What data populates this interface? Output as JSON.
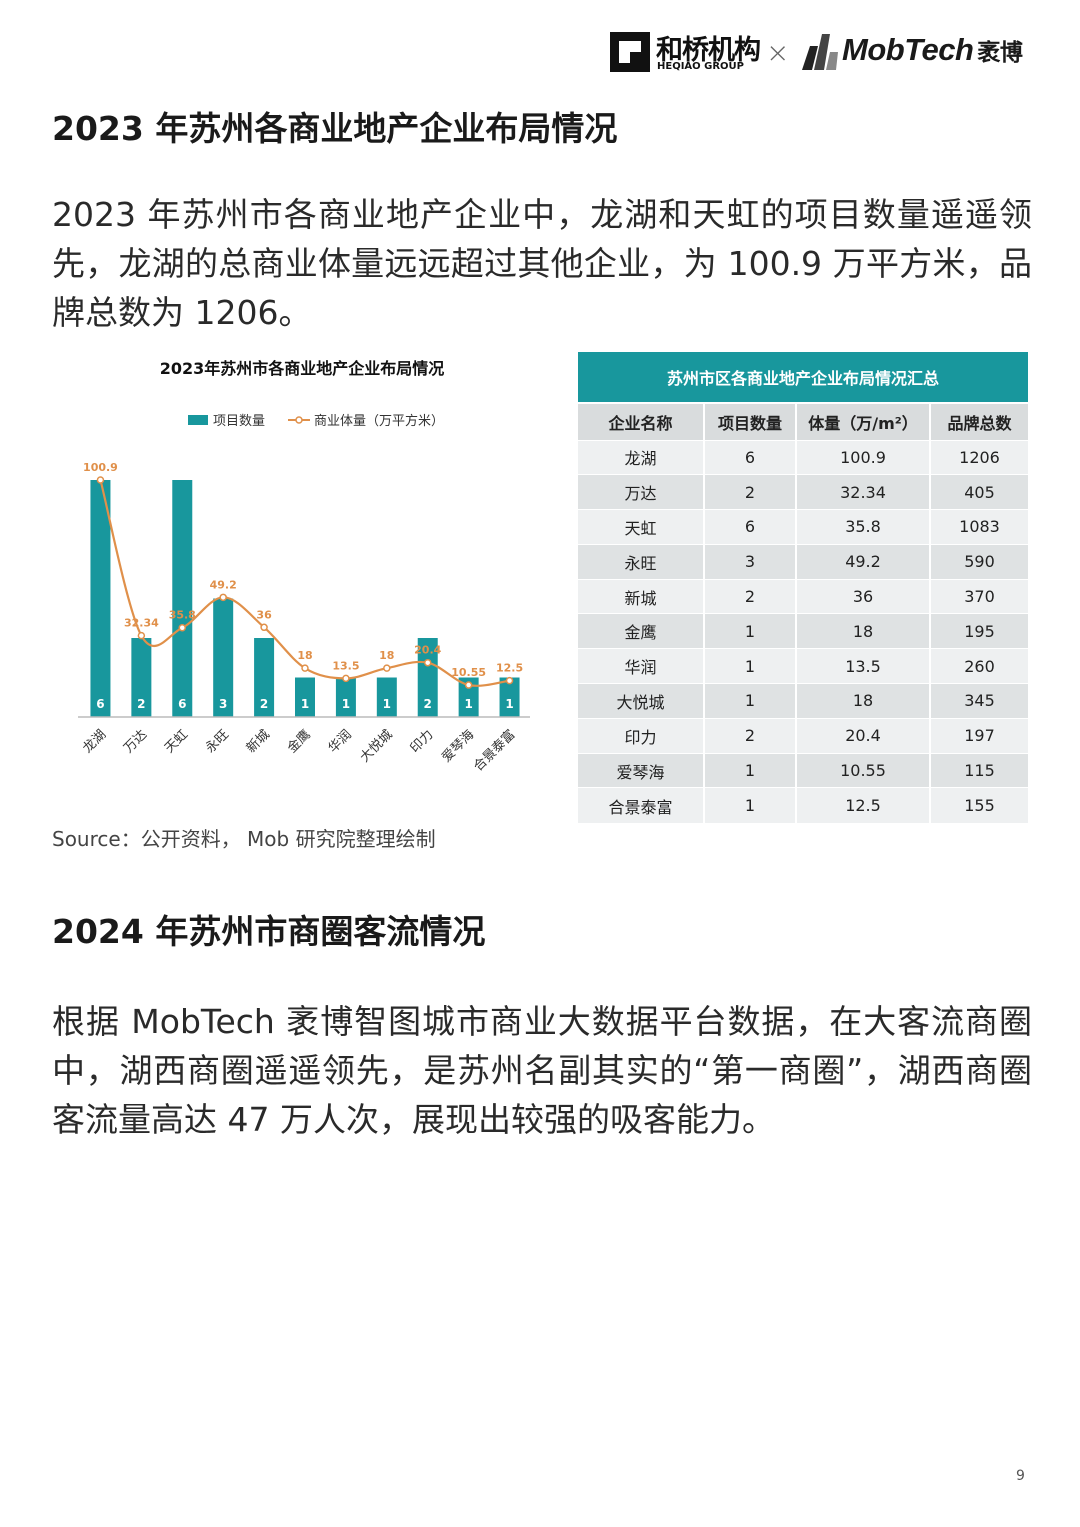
{
  "header": {
    "heqiao_cn": "和桥机构",
    "heqiao_en": "HEQIAO GROUP",
    "separator": "×",
    "mobtech_en": "MobTech",
    "mobtech_cn": "袤博"
  },
  "section1": {
    "title": "2023 年苏州各商业地产企业布局情况",
    "paragraph": "2023 年苏州市各商业地产企业中，龙湖和天虹的项目数量遥遥领先，龙湖的总商业体量远远超过其他企业，为 100.9 万平方米，品牌总数为 1206。"
  },
  "chart_data": {
    "type": "bar",
    "title": "2023年苏州市各商业地产企业布局情况",
    "categories": [
      "龙湖",
      "万达",
      "天虹",
      "永旺",
      "新城",
      "金鹰",
      "华润",
      "大悦城",
      "印力",
      "爱琴海",
      "合景泰富"
    ],
    "series": [
      {
        "name": "项目数量",
        "type": "bar",
        "values": [
          6,
          2,
          6,
          3,
          2,
          1,
          1,
          1,
          2,
          1,
          1
        ]
      },
      {
        "name": "商业体量（万平方米）",
        "type": "line",
        "values": [
          100.9,
          32.34,
          35.8,
          49.2,
          36,
          18,
          13.5,
          18,
          20.4,
          10.55,
          12.5
        ]
      }
    ],
    "legend_position": "top",
    "colors": {
      "bar": "#18979d",
      "line": "#e0904a"
    }
  },
  "source": "Source：公开资料， Mob 研究院整理绘制",
  "table": {
    "title": "苏州市区各商业地产企业布局情况汇总",
    "headers": [
      "企业名称",
      "项目数量",
      "体量（万/m²）",
      "品牌总数"
    ],
    "rows": [
      [
        "龙湖",
        "6",
        "100.9",
        "1206"
      ],
      [
        "万达",
        "2",
        "32.34",
        "405"
      ],
      [
        "天虹",
        "6",
        "35.8",
        "1083"
      ],
      [
        "永旺",
        "3",
        "49.2",
        "590"
      ],
      [
        "新城",
        "2",
        "36",
        "370"
      ],
      [
        "金鹰",
        "1",
        "18",
        "195"
      ],
      [
        "华润",
        "1",
        "13.5",
        "260"
      ],
      [
        "大悦城",
        "1",
        "18",
        "345"
      ],
      [
        "印力",
        "2",
        "20.4",
        "197"
      ],
      [
        "爱琴海",
        "1",
        "10.55",
        "115"
      ],
      [
        "合景泰富",
        "1",
        "12.5",
        "155"
      ]
    ]
  },
  "section2": {
    "title": "2024 年苏州市商圈客流情况",
    "paragraph": "根据 MobTech 袤博智图城市商业大数据平台数据，在大客流商圈中，湖西商圈遥遥领先，是苏州名副其实的“第一商圈”，湖西商圈客流量高达 47 万人次，展现出较强的吸客能力。"
  },
  "page_number": "9"
}
